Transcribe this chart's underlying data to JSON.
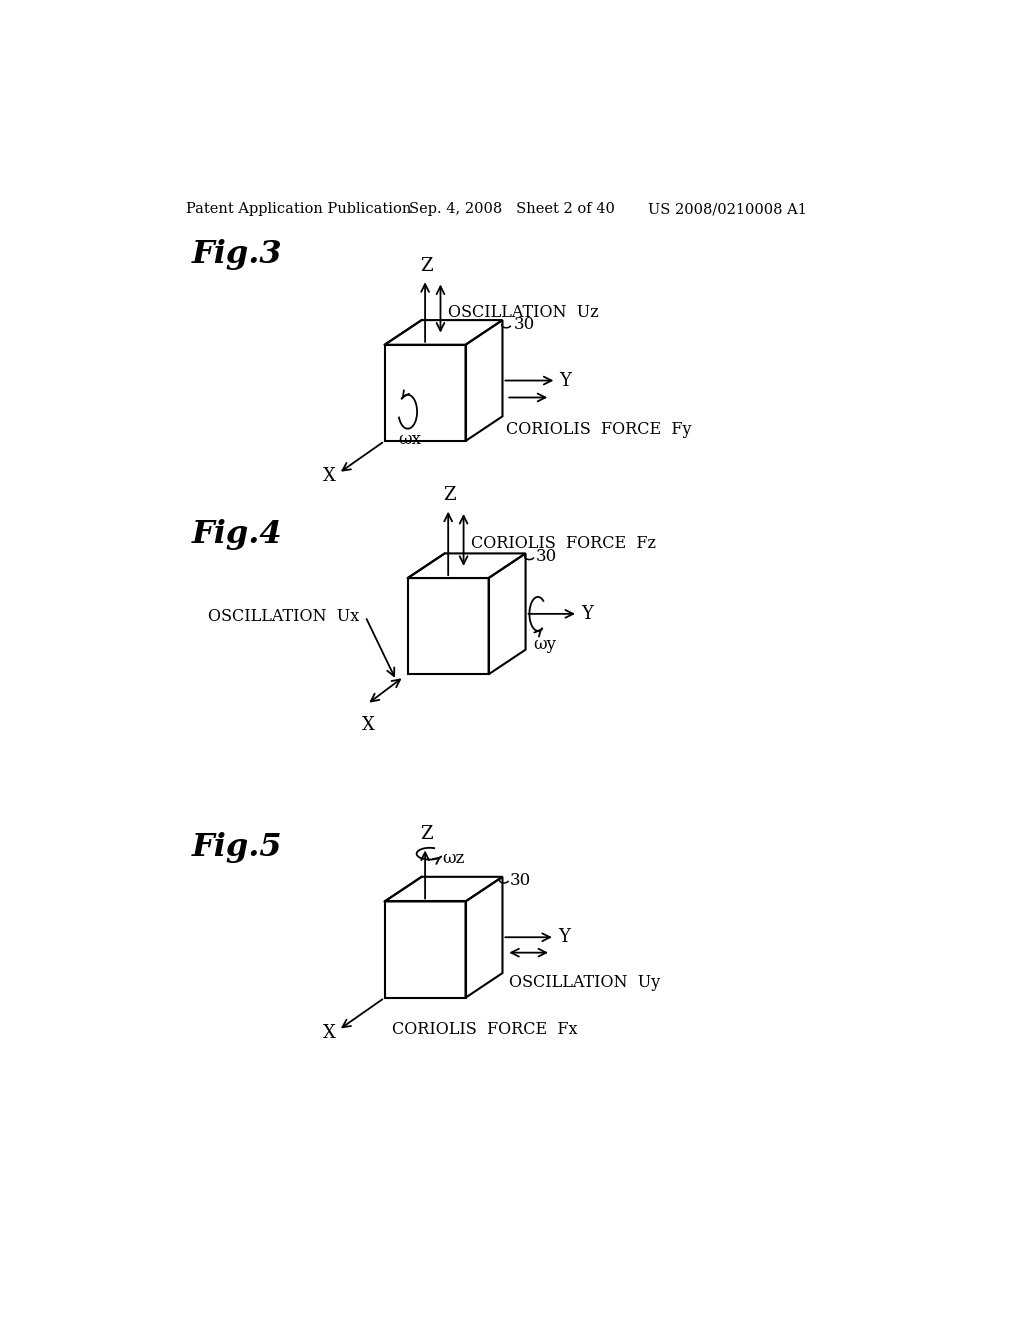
{
  "bg_color": "#ffffff",
  "text_color": "#000000",
  "header_left": "Patent Application Publication",
  "header_mid": "Sep. 4, 2008   Sheet 2 of 40",
  "header_right": "US 2008/0210008 A1",
  "fig3_label": "Fig.3",
  "fig4_label": "Fig.4",
  "fig5_label": "Fig.5",
  "fig3_osc_text": "OSCILLATION  Uz",
  "fig3_coriolis_text": "CORIOLIS  FORCE  Fy",
  "fig3_omega_text": "ωx",
  "fig4_osc_text": "OSCILLATION  Ux",
  "fig4_coriolis_text": "CORIOLIS  FORCE  Fz",
  "fig4_omega_text": "ωy",
  "fig5_osc_text": "OSCILLATION  Uy",
  "fig5_coriolis_text": "CORIOLIS  FORCE  Fx",
  "fig5_omega_text": "ωz"
}
